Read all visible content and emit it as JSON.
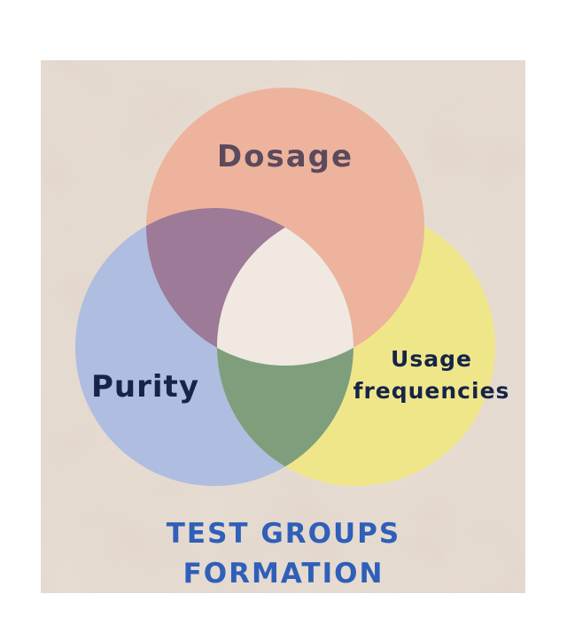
{
  "diagram": {
    "type": "venn",
    "sets": [
      {
        "id": "dosage",
        "label": "Dosage",
        "color": "#EDB39C"
      },
      {
        "id": "purity",
        "label": "Purity",
        "color": "#AEBDE0"
      },
      {
        "id": "usage",
        "label_lines": [
          "Usage",
          "frequencies"
        ],
        "color": "#EFE68A"
      }
    ],
    "overlaps": {
      "dosage_purity": "#9C7A98",
      "purity_usage": "#7E9E7C",
      "dosage_usage": "#EDB39C",
      "all_three": "#F1E8E2"
    },
    "label_colors": {
      "dosage": "#5B4A5C",
      "purity": "#162447",
      "usage": "#162447"
    }
  },
  "footer": {
    "lines": [
      "TEST GROUPS",
      "FORMATION"
    ],
    "color": "#2F5FB8"
  },
  "background": {
    "page": "#FFFFFF",
    "panel": "#E8DDD3"
  }
}
